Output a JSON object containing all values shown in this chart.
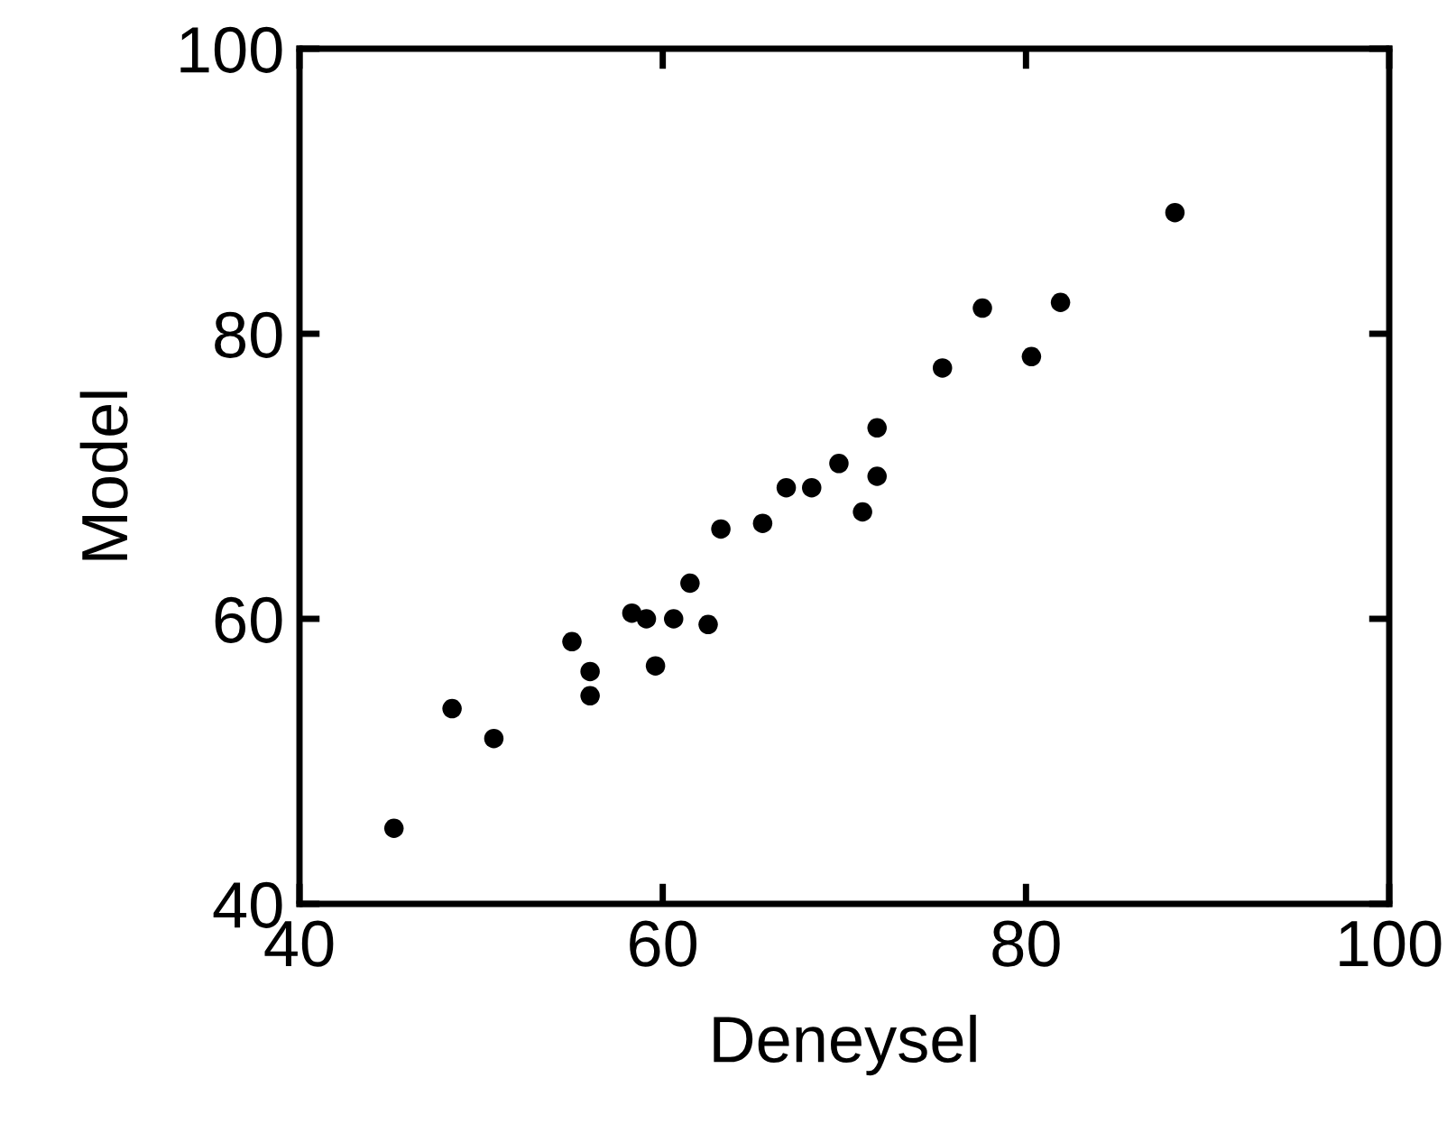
{
  "chart_data": {
    "type": "scatter",
    "xlabel": "Deneysel",
    "ylabel": "Model",
    "x": [
      45.2,
      48.4,
      50.7,
      55.0,
      56.0,
      56.0,
      58.3,
      59.1,
      60.6,
      59.6,
      61.5,
      62.5,
      63.2,
      65.5,
      66.8,
      68.2,
      69.7,
      71.0,
      71.8,
      71.8,
      75.4,
      77.6,
      80.3,
      81.9,
      88.2
    ],
    "values": [
      45.3,
      53.7,
      51.6,
      58.4,
      56.3,
      54.6,
      60.4,
      60.0,
      60.0,
      56.7,
      62.5,
      59.6,
      66.3,
      66.7,
      69.2,
      69.2,
      70.9,
      67.5,
      73.4,
      70.0,
      77.6,
      81.8,
      78.4,
      82.2,
      88.5
    ],
    "color": "#000000",
    "marker": "circle",
    "xlim": [
      40,
      100
    ],
    "ylim": [
      40,
      100
    ],
    "xticks": [
      40,
      60,
      80,
      100
    ],
    "yticks": [
      40,
      60,
      80,
      100
    ],
    "grid": false
  }
}
